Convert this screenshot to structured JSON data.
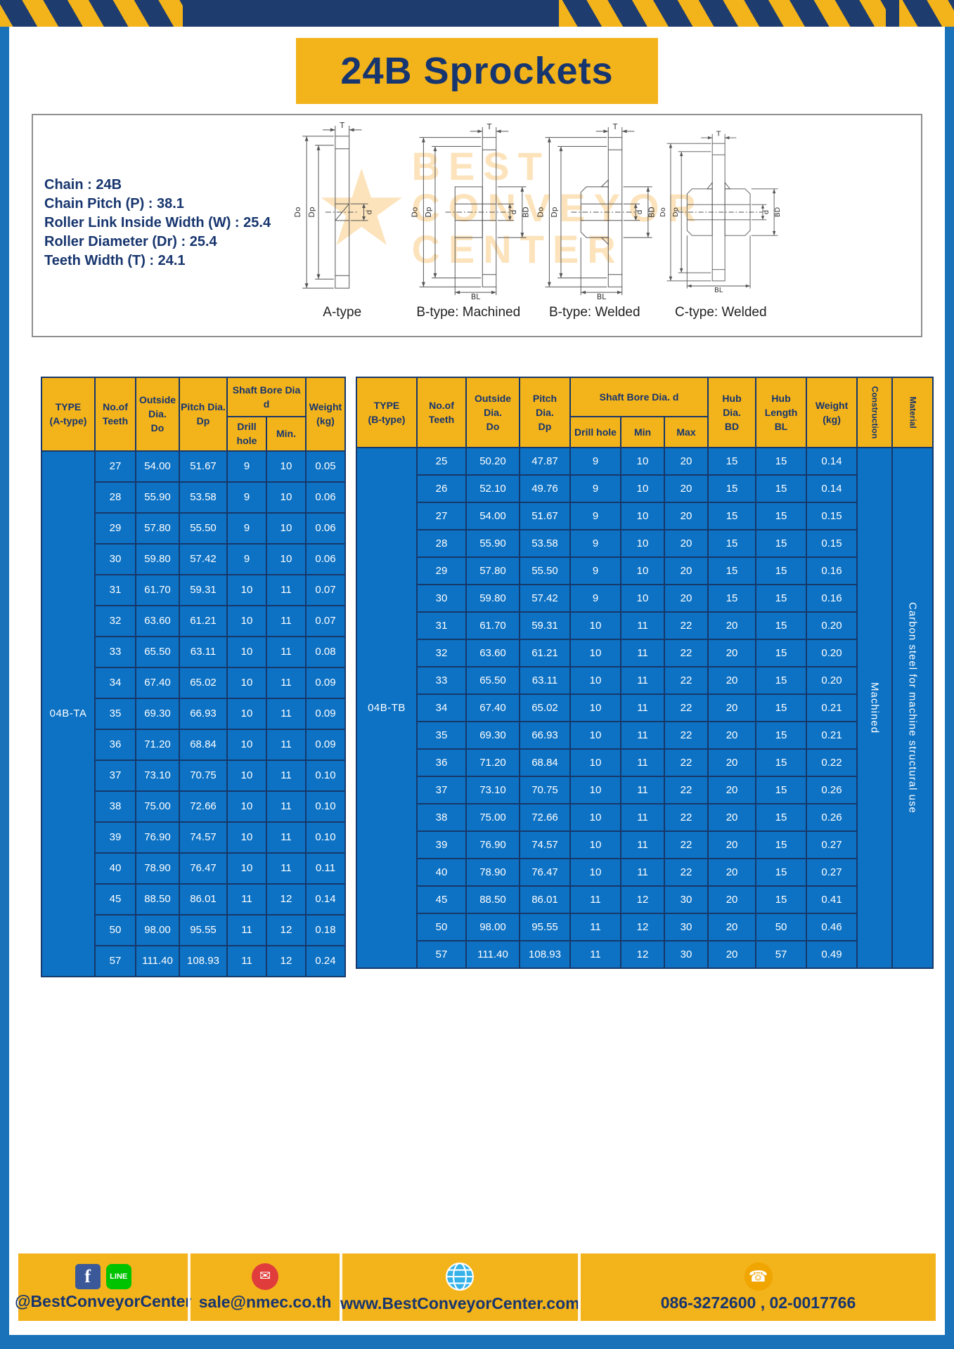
{
  "page_title": "24B Sprockets",
  "specs": {
    "lines": [
      "Chain  :  24B",
      "Chain Pitch (P)  :  38.1",
      "Roller Link Inside Width (W)  :  25.4",
      "Roller Diameter (Dr)  :  25.4",
      "Teeth Width (T)  :  24.1"
    ]
  },
  "diagram": {
    "captions": [
      "A-type",
      "B-type: Machined",
      "B-type: Welded",
      "C-type: Welded"
    ],
    "dims": {
      "t": "T",
      "do": "Do",
      "dp": "Dp",
      "d": "d",
      "bd": "BD",
      "bl": "BL"
    },
    "watermark": {
      "star": "★",
      "line1": "BEST",
      "line2": "CONVEYOR",
      "line3": "CENTER"
    }
  },
  "table_a": {
    "headers": {
      "type": "TYPE\n(A-type)",
      "teeth": "No.of\nTeeth",
      "outside": "Outside\nDia.\nDo",
      "pitch": "Pitch Dia.\nDp",
      "shaft": "Shaft Bore Dia d",
      "drill": "Drill hole",
      "min": "Min.",
      "weight": "Weight\n(kg)"
    },
    "type_code": "04B-TA",
    "rows": [
      [
        "27",
        "54.00",
        "51.67",
        "9",
        "10",
        "0.05"
      ],
      [
        "28",
        "55.90",
        "53.58",
        "9",
        "10",
        "0.06"
      ],
      [
        "29",
        "57.80",
        "55.50",
        "9",
        "10",
        "0.06"
      ],
      [
        "30",
        "59.80",
        "57.42",
        "9",
        "10",
        "0.06"
      ],
      [
        "31",
        "61.70",
        "59.31",
        "10",
        "11",
        "0.07"
      ],
      [
        "32",
        "63.60",
        "61.21",
        "10",
        "11",
        "0.07"
      ],
      [
        "33",
        "65.50",
        "63.11",
        "10",
        "11",
        "0.08"
      ],
      [
        "34",
        "67.40",
        "65.02",
        "10",
        "11",
        "0.09"
      ],
      [
        "35",
        "69.30",
        "66.93",
        "10",
        "11",
        "0.09"
      ],
      [
        "36",
        "71.20",
        "68.84",
        "10",
        "11",
        "0.09"
      ],
      [
        "37",
        "73.10",
        "70.75",
        "10",
        "11",
        "0.10"
      ],
      [
        "38",
        "75.00",
        "72.66",
        "10",
        "11",
        "0.10"
      ],
      [
        "39",
        "76.90",
        "74.57",
        "10",
        "11",
        "0.10"
      ],
      [
        "40",
        "78.90",
        "76.47",
        "10",
        "11",
        "0.11"
      ],
      [
        "45",
        "88.50",
        "86.01",
        "11",
        "12",
        "0.14"
      ],
      [
        "50",
        "98.00",
        "95.55",
        "11",
        "12",
        "0.18"
      ],
      [
        "57",
        "111.40",
        "108.93",
        "11",
        "12",
        "0.24"
      ]
    ]
  },
  "table_b": {
    "headers": {
      "type": "TYPE\n(B-type)",
      "teeth": "No.of\nTeeth",
      "outside": "Outside\nDia.\nDo",
      "pitch": "Pitch\nDia.\nDp",
      "shaft": "Shaft Bore Dia.  d",
      "drill": "Drill hole",
      "min": "Min",
      "max": "Max",
      "hub_dia": "Hub\nDia.\nBD",
      "hub_len": "Hub\nLength\nBL",
      "weight": "Weight\n(kg)",
      "construction": "Construction",
      "material": "Material"
    },
    "type_code": "04B-TB",
    "construction": "Machined",
    "material": "Carbon steel for machine structural use",
    "rows": [
      [
        "25",
        "50.20",
        "47.87",
        "9",
        "10",
        "20",
        "15",
        "15",
        "0.14"
      ],
      [
        "26",
        "52.10",
        "49.76",
        "9",
        "10",
        "20",
        "15",
        "15",
        "0.14"
      ],
      [
        "27",
        "54.00",
        "51.67",
        "9",
        "10",
        "20",
        "15",
        "15",
        "0.15"
      ],
      [
        "28",
        "55.90",
        "53.58",
        "9",
        "10",
        "20",
        "15",
        "15",
        "0.15"
      ],
      [
        "29",
        "57.80",
        "55.50",
        "9",
        "10",
        "20",
        "15",
        "15",
        "0.16"
      ],
      [
        "30",
        "59.80",
        "57.42",
        "9",
        "10",
        "20",
        "15",
        "15",
        "0.16"
      ],
      [
        "31",
        "61.70",
        "59.31",
        "10",
        "11",
        "22",
        "20",
        "15",
        "0.20"
      ],
      [
        "32",
        "63.60",
        "61.21",
        "10",
        "11",
        "22",
        "20",
        "15",
        "0.20"
      ],
      [
        "33",
        "65.50",
        "63.11",
        "10",
        "11",
        "22",
        "20",
        "15",
        "0.20"
      ],
      [
        "34",
        "67.40",
        "65.02",
        "10",
        "11",
        "22",
        "20",
        "15",
        "0.21"
      ],
      [
        "35",
        "69.30",
        "66.93",
        "10",
        "11",
        "22",
        "20",
        "15",
        "0.21"
      ],
      [
        "36",
        "71.20",
        "68.84",
        "10",
        "11",
        "22",
        "20",
        "15",
        "0.22"
      ],
      [
        "37",
        "73.10",
        "70.75",
        "10",
        "11",
        "22",
        "20",
        "15",
        "0.26"
      ],
      [
        "38",
        "75.00",
        "72.66",
        "10",
        "11",
        "22",
        "20",
        "15",
        "0.26"
      ],
      [
        "39",
        "76.90",
        "74.57",
        "10",
        "11",
        "22",
        "20",
        "15",
        "0.27"
      ],
      [
        "40",
        "78.90",
        "76.47",
        "10",
        "11",
        "22",
        "20",
        "15",
        "0.27"
      ],
      [
        "45",
        "88.50",
        "86.01",
        "11",
        "12",
        "30",
        "20",
        "15",
        "0.41"
      ],
      [
        "50",
        "98.00",
        "95.55",
        "11",
        "12",
        "30",
        "20",
        "50",
        "0.46"
      ],
      [
        "57",
        "111.40",
        "108.93",
        "11",
        "12",
        "30",
        "20",
        "57",
        "0.49"
      ]
    ]
  },
  "footer": {
    "facebook_label": "f",
    "line_label": "LINE",
    "email_glyph": "✉",
    "phone_glyph": "☎",
    "social_handle": "@BestConveyorCenter",
    "email": "sale@nmec.co.th",
    "website": "www.BestConveyorCenter.com",
    "phone": "086-3272600 , 02-0017766"
  }
}
